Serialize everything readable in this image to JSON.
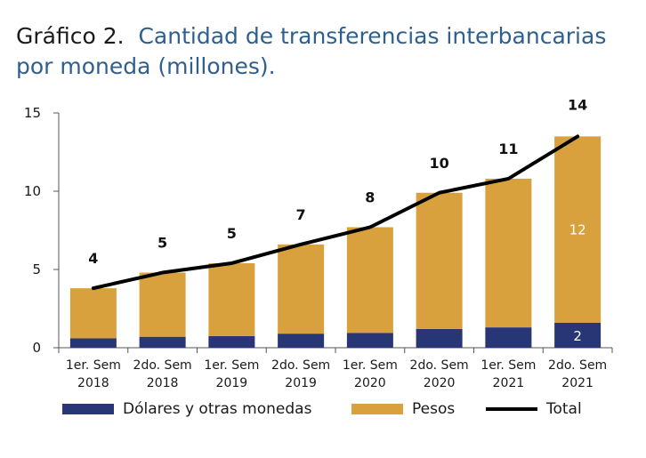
{
  "title": {
    "prefix": "Gráfico 2.",
    "main": "Cantidad de transferencias interbancarias por moneda (millones)."
  },
  "colors": {
    "dolares": "#283676",
    "pesos": "#d9a13e",
    "total": "#000000"
  },
  "chart_data": {
    "type": "bar",
    "stacked": true,
    "categories": [
      [
        "1er. Sem",
        "2018"
      ],
      [
        "2do. Sem",
        "2018"
      ],
      [
        "1er. Sem",
        "2019"
      ],
      [
        "2do. Sem",
        "2019"
      ],
      [
        "1er. Sem",
        "2020"
      ],
      [
        "2do. Sem",
        "2020"
      ],
      [
        "1er. Sem",
        "2021"
      ],
      [
        "2do. Sem",
        "2021"
      ]
    ],
    "series": [
      {
        "name": "Dólares y otras monedas",
        "values": [
          0.6,
          0.7,
          0.75,
          0.9,
          0.95,
          1.2,
          1.3,
          1.6
        ]
      },
      {
        "name": "Pesos",
        "values": [
          3.2,
          4.1,
          4.65,
          5.7,
          6.75,
          8.7,
          9.5,
          11.9
        ]
      }
    ],
    "total": {
      "name": "Total",
      "values": [
        3.8,
        4.8,
        5.4,
        6.6,
        7.7,
        9.9,
        10.8,
        13.5
      ],
      "labels": [
        "4",
        "5",
        "5",
        "7",
        "8",
        "10",
        "11",
        "14"
      ]
    },
    "inbar_labels": {
      "index": 7,
      "pesos": "12",
      "dolares": "2"
    },
    "yticks": [
      "0",
      "5",
      "10",
      "15"
    ],
    "ylim": [
      0,
      15
    ],
    "legend_position": "bottom"
  }
}
